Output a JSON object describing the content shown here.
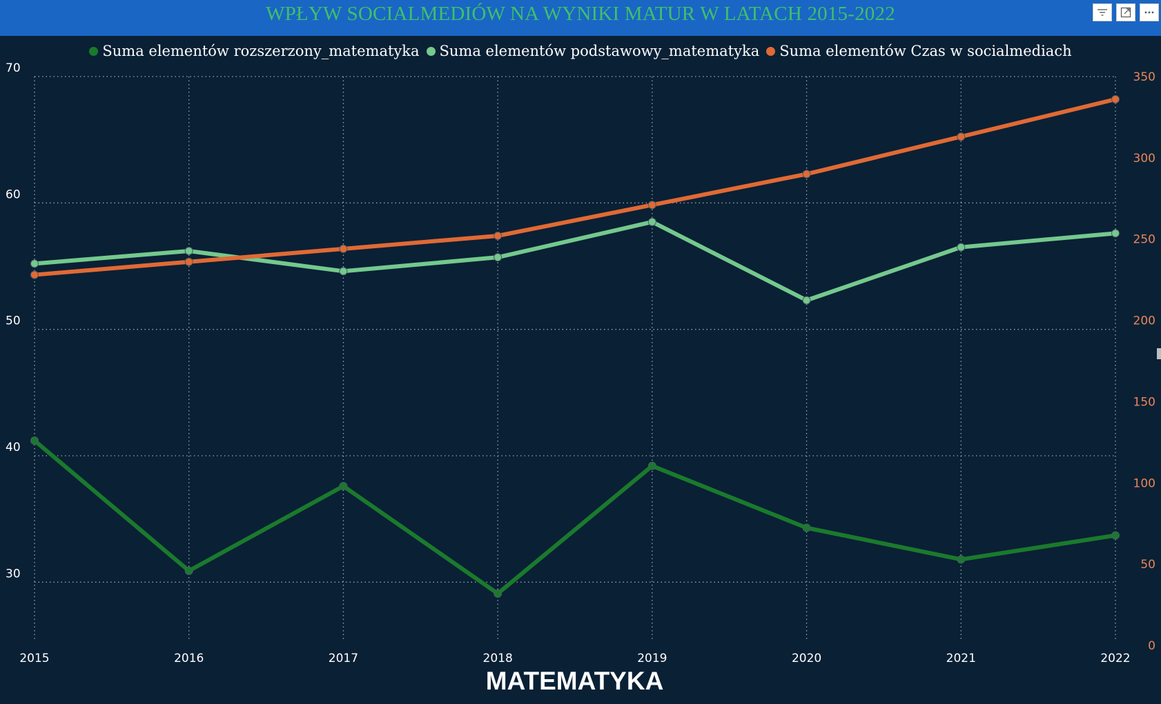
{
  "title": "WPŁYW SOCIALMEDIÓW NA WYNIKI MATUR W LATACH 2015-2022",
  "bottom_title": "MATEMATYKA",
  "toolbar": {
    "filter_icon": "filter-icon",
    "focus_icon": "focus-mode-icon",
    "more_icon": "more-options-icon"
  },
  "colors": {
    "background": "#0a2035",
    "title_bar": "#1a66c4",
    "title_text": "#3fc06a",
    "rozszerzony": "#1a7a2c",
    "podstawowy": "#74c98d",
    "czas": "#e06a35",
    "right_axis_text": "#e8865a"
  },
  "chart_data": {
    "type": "line",
    "x": [
      "2015",
      "2016",
      "2017",
      "2018",
      "2019",
      "2020",
      "2021",
      "2022"
    ],
    "series": [
      {
        "name": "Suma elementów rozszerzony_matematyka",
        "axis": "left",
        "color": "#1a7a2c",
        "values": [
          41.2,
          30.9,
          37.6,
          29.1,
          39.2,
          34.3,
          31.8,
          33.7
        ]
      },
      {
        "name": "Suma elementów podstawowy_matematyka",
        "axis": "left",
        "color": "#74c98d",
        "values": [
          55.2,
          56.2,
          54.6,
          55.7,
          58.5,
          52.3,
          56.5,
          57.6
        ]
      },
      {
        "name": "Suma elementów Czas w socialmediach",
        "axis": "right",
        "color": "#e06a35",
        "values": [
          228,
          236,
          244,
          252,
          271,
          290,
          313,
          336
        ]
      }
    ],
    "y_left": {
      "lim": [
        25,
        70
      ],
      "ticks": [
        "30",
        "40",
        "50",
        "60",
        "70"
      ]
    },
    "y_right": {
      "lim": [
        0,
        350
      ],
      "ticks": [
        "0",
        "50",
        "100",
        "150",
        "200",
        "250",
        "300",
        "350"
      ]
    },
    "grid": true,
    "legend_position": "top"
  }
}
